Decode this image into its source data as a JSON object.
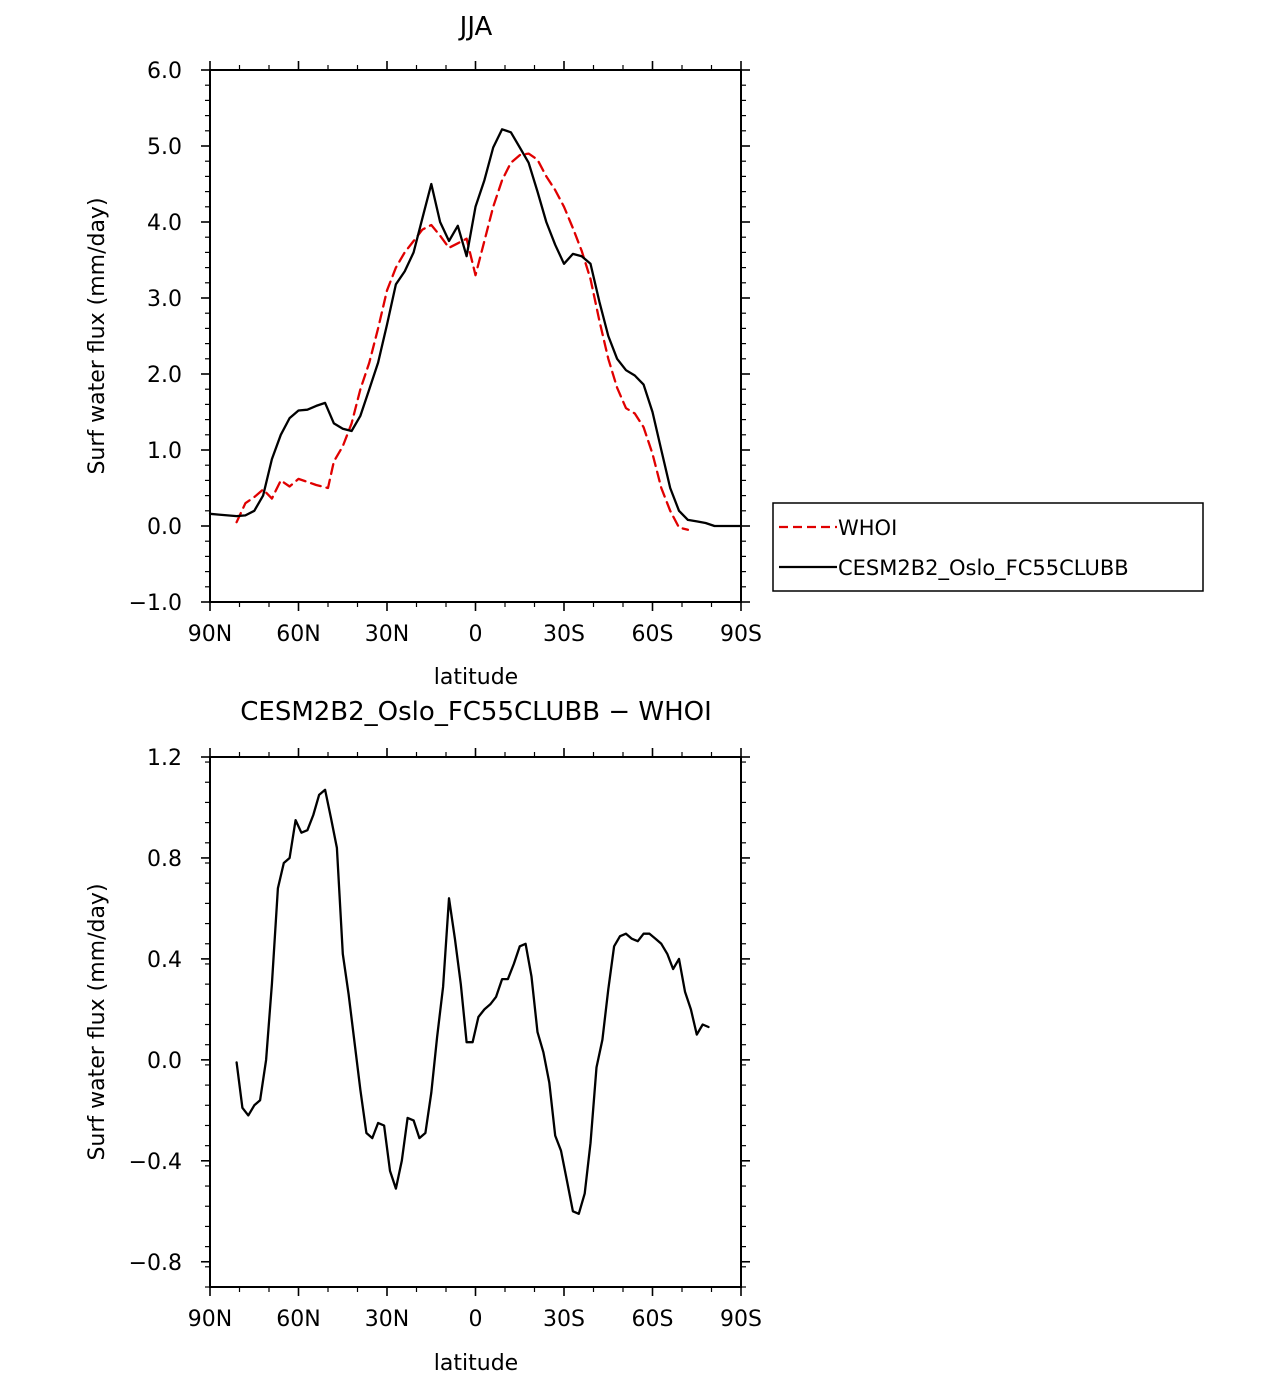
{
  "chart_data": [
    {
      "type": "line",
      "title": "JJA",
      "xlabel": "latitude",
      "ylabel": "Surf water flux (mm/day)",
      "xlim": [
        90,
        -90
      ],
      "ylim": [
        -1.0,
        6.0
      ],
      "xticks": [
        90,
        60,
        30,
        0,
        -30,
        -60,
        -90
      ],
      "xtick_labels": [
        "90N",
        "60N",
        "30N",
        "0",
        "30S",
        "60S",
        "90S"
      ],
      "yticks": [
        -1.0,
        0.0,
        1.0,
        2.0,
        3.0,
        4.0,
        5.0,
        6.0
      ],
      "ytick_labels": [
        "−1.0",
        "0.0",
        "1.0",
        "2.0",
        "3.0",
        "4.0",
        "5.0",
        "6.0"
      ],
      "legend": "right-outside",
      "series": [
        {
          "name": "WHOI",
          "color": "#e00000",
          "dash": "dashed",
          "points": [
            [
              81,
              0.05
            ],
            [
              78,
              0.3
            ],
            [
              75,
              0.38
            ],
            [
              72,
              0.48
            ],
            [
              69,
              0.36
            ],
            [
              66,
              0.6
            ],
            [
              63,
              0.52
            ],
            [
              60,
              0.62
            ],
            [
              57,
              0.58
            ],
            [
              54,
              0.54
            ],
            [
              50,
              0.5
            ],
            [
              48,
              0.85
            ],
            [
              45,
              1.05
            ],
            [
              42,
              1.35
            ],
            [
              39,
              1.8
            ],
            [
              36,
              2.15
            ],
            [
              33,
              2.6
            ],
            [
              30,
              3.1
            ],
            [
              27,
              3.4
            ],
            [
              24,
              3.6
            ],
            [
              21,
              3.75
            ],
            [
              18,
              3.9
            ],
            [
              15,
              3.96
            ],
            [
              12,
              3.82
            ],
            [
              9,
              3.66
            ],
            [
              6,
              3.72
            ],
            [
              3,
              3.78
            ],
            [
              0,
              3.3
            ],
            [
              -3,
              3.75
            ],
            [
              -6,
              4.2
            ],
            [
              -9,
              4.55
            ],
            [
              -12,
              4.78
            ],
            [
              -15,
              4.88
            ],
            [
              -18,
              4.9
            ],
            [
              -21,
              4.82
            ],
            [
              -24,
              4.6
            ],
            [
              -27,
              4.42
            ],
            [
              -30,
              4.2
            ],
            [
              -33,
              3.92
            ],
            [
              -36,
              3.62
            ],
            [
              -39,
              3.25
            ],
            [
              -42,
              2.7
            ],
            [
              -45,
              2.2
            ],
            [
              -48,
              1.82
            ],
            [
              -51,
              1.55
            ],
            [
              -54,
              1.48
            ],
            [
              -57,
              1.3
            ],
            [
              -60,
              0.95
            ],
            [
              -63,
              0.5
            ],
            [
              -66,
              0.2
            ],
            [
              -69,
              -0.02
            ],
            [
              -72,
              -0.05
            ]
          ]
        },
        {
          "name": "CESM2B2_Oslo_FC55CLUBB",
          "color": "#000000",
          "dash": "solid",
          "points": [
            [
              90,
              0.16
            ],
            [
              87,
              0.15
            ],
            [
              84,
              0.14
            ],
            [
              81,
              0.13
            ],
            [
              78,
              0.14
            ],
            [
              75,
              0.2
            ],
            [
              72,
              0.4
            ],
            [
              69,
              0.88
            ],
            [
              66,
              1.2
            ],
            [
              63,
              1.42
            ],
            [
              60,
              1.52
            ],
            [
              57,
              1.53
            ],
            [
              54,
              1.58
            ],
            [
              51,
              1.62
            ],
            [
              48,
              1.35
            ],
            [
              45,
              1.28
            ],
            [
              42,
              1.25
            ],
            [
              39,
              1.45
            ],
            [
              36,
              1.8
            ],
            [
              33,
              2.15
            ],
            [
              30,
              2.65
            ],
            [
              27,
              3.18
            ],
            [
              24,
              3.35
            ],
            [
              21,
              3.6
            ],
            [
              18,
              4.05
            ],
            [
              15,
              4.5
            ],
            [
              12,
              4.0
            ],
            [
              9,
              3.75
            ],
            [
              6,
              3.95
            ],
            [
              3,
              3.55
            ],
            [
              0,
              4.2
            ],
            [
              -3,
              4.55
            ],
            [
              -6,
              4.98
            ],
            [
              -9,
              5.22
            ],
            [
              -12,
              5.18
            ],
            [
              -15,
              4.98
            ],
            [
              -18,
              4.78
            ],
            [
              -21,
              4.4
            ],
            [
              -24,
              4.0
            ],
            [
              -27,
              3.7
            ],
            [
              -30,
              3.45
            ],
            [
              -33,
              3.58
            ],
            [
              -36,
              3.55
            ],
            [
              -39,
              3.45
            ],
            [
              -42,
              2.95
            ],
            [
              -45,
              2.5
            ],
            [
              -48,
              2.2
            ],
            [
              -51,
              2.05
            ],
            [
              -54,
              1.98
            ],
            [
              -57,
              1.86
            ],
            [
              -60,
              1.5
            ],
            [
              -63,
              1.0
            ],
            [
              -66,
              0.5
            ],
            [
              -69,
              0.2
            ],
            [
              -72,
              0.08
            ],
            [
              -75,
              0.06
            ],
            [
              -78,
              0.04
            ],
            [
              -81,
              0.0
            ],
            [
              -84,
              0.0
            ],
            [
              -87,
              0.0
            ],
            [
              -90,
              0.0
            ]
          ]
        }
      ]
    },
    {
      "type": "line",
      "title": "CESM2B2_Oslo_FC55CLUBB − WHOI",
      "xlabel": "latitude",
      "ylabel": "Surf water flux (mm/day)",
      "xlim": [
        90,
        -90
      ],
      "ylim": [
        -0.9,
        1.2
      ],
      "xticks": [
        90,
        60,
        30,
        0,
        -30,
        -60,
        -90
      ],
      "xtick_labels": [
        "90N",
        "60N",
        "30N",
        "0",
        "30S",
        "60S",
        "90S"
      ],
      "yticks": [
        -0.8,
        -0.4,
        0.0,
        0.4,
        0.8,
        1.2
      ],
      "ytick_labels": [
        "−0.8",
        "−0.4",
        "0.0",
        "0.4",
        "0.8",
        "1.2"
      ],
      "series": [
        {
          "color": "#000000",
          "dash": "solid",
          "points": [
            [
              81,
              -0.01
            ],
            [
              79,
              -0.19
            ],
            [
              77,
              -0.22
            ],
            [
              75,
              -0.18
            ],
            [
              73,
              -0.16
            ],
            [
              71,
              0.0
            ],
            [
              69,
              0.3
            ],
            [
              67,
              0.68
            ],
            [
              65,
              0.78
            ],
            [
              63,
              0.8
            ],
            [
              61,
              0.95
            ],
            [
              59,
              0.9
            ],
            [
              57,
              0.91
            ],
            [
              55,
              0.97
            ],
            [
              53,
              1.05
            ],
            [
              51,
              1.07
            ],
            [
              49,
              0.96
            ],
            [
              47,
              0.84
            ],
            [
              45,
              0.42
            ],
            [
              43,
              0.26
            ],
            [
              41,
              0.07
            ],
            [
              39,
              -0.12
            ],
            [
              37,
              -0.29
            ],
            [
              35,
              -0.31
            ],
            [
              33,
              -0.25
            ],
            [
              31,
              -0.26
            ],
            [
              29,
              -0.44
            ],
            [
              27,
              -0.51
            ],
            [
              25,
              -0.4
            ],
            [
              23,
              -0.23
            ],
            [
              21,
              -0.24
            ],
            [
              19,
              -0.31
            ],
            [
              17,
              -0.29
            ],
            [
              15,
              -0.13
            ],
            [
              13,
              0.09
            ],
            [
              11,
              0.29
            ],
            [
              9,
              0.64
            ],
            [
              7,
              0.48
            ],
            [
              5,
              0.3
            ],
            [
              3,
              0.07
            ],
            [
              1,
              0.07
            ],
            [
              -1,
              0.17
            ],
            [
              -3,
              0.2
            ],
            [
              -5,
              0.22
            ],
            [
              -7,
              0.25
            ],
            [
              -9,
              0.32
            ],
            [
              -11,
              0.32
            ],
            [
              -13,
              0.38
            ],
            [
              -15,
              0.45
            ],
            [
              -17,
              0.46
            ],
            [
              -19,
              0.33
            ],
            [
              -21,
              0.11
            ],
            [
              -23,
              0.03
            ],
            [
              -25,
              -0.09
            ],
            [
              -27,
              -0.3
            ],
            [
              -29,
              -0.36
            ],
            [
              -31,
              -0.48
            ],
            [
              -33,
              -0.6
            ],
            [
              -35,
              -0.61
            ],
            [
              -37,
              -0.53
            ],
            [
              -39,
              -0.33
            ],
            [
              -41,
              -0.03
            ],
            [
              -43,
              0.08
            ],
            [
              -45,
              0.28
            ],
            [
              -47,
              0.45
            ],
            [
              -49,
              0.49
            ],
            [
              -51,
              0.5
            ],
            [
              -53,
              0.48
            ],
            [
              -55,
              0.47
            ],
            [
              -57,
              0.5
            ],
            [
              -59,
              0.5
            ],
            [
              -61,
              0.48
            ],
            [
              -63,
              0.46
            ],
            [
              -65,
              0.42
            ],
            [
              -67,
              0.36
            ],
            [
              -69,
              0.4
            ],
            [
              -71,
              0.27
            ],
            [
              -73,
              0.2
            ],
            [
              -75,
              0.1
            ],
            [
              -77,
              0.14
            ],
            [
              -79,
              0.13
            ]
          ]
        }
      ]
    }
  ]
}
